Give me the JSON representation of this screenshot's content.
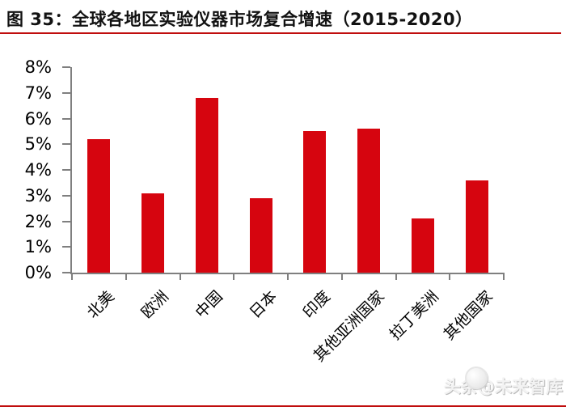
{
  "header": {
    "title": "图 35：全球各地区实验仪器市场复合增速（2015-2020）"
  },
  "chart_data": {
    "type": "bar",
    "title": "全球各地区实验仪器市场复合增速（2015-2020）",
    "categories": [
      "北美",
      "欧洲",
      "中国",
      "日本",
      "印度",
      "其他亚洲国家",
      "拉丁美洲",
      "其他国家"
    ],
    "values": [
      5.2,
      3.1,
      6.8,
      2.9,
      5.5,
      5.6,
      2.1,
      3.6
    ],
    "unit": "%",
    "xlabel": "",
    "ylabel": "",
    "ylim": [
      0,
      8
    ],
    "ytick_step": 1,
    "ytick_labels": [
      "0%",
      "1%",
      "2%",
      "3%",
      "4%",
      "5%",
      "6%",
      "7%",
      "8%"
    ],
    "grid": "off",
    "legend": "none",
    "bar_color": "#d6050f",
    "axis_color": "#7f7f7f"
  },
  "watermark": {
    "text": "头条@未来智库",
    "logo_icon": "toutiao-avatar-icon"
  },
  "colors": {
    "accent_red": "#c00d0d",
    "bar_red": "#d6050f",
    "axis_gray": "#7f7f7f"
  }
}
